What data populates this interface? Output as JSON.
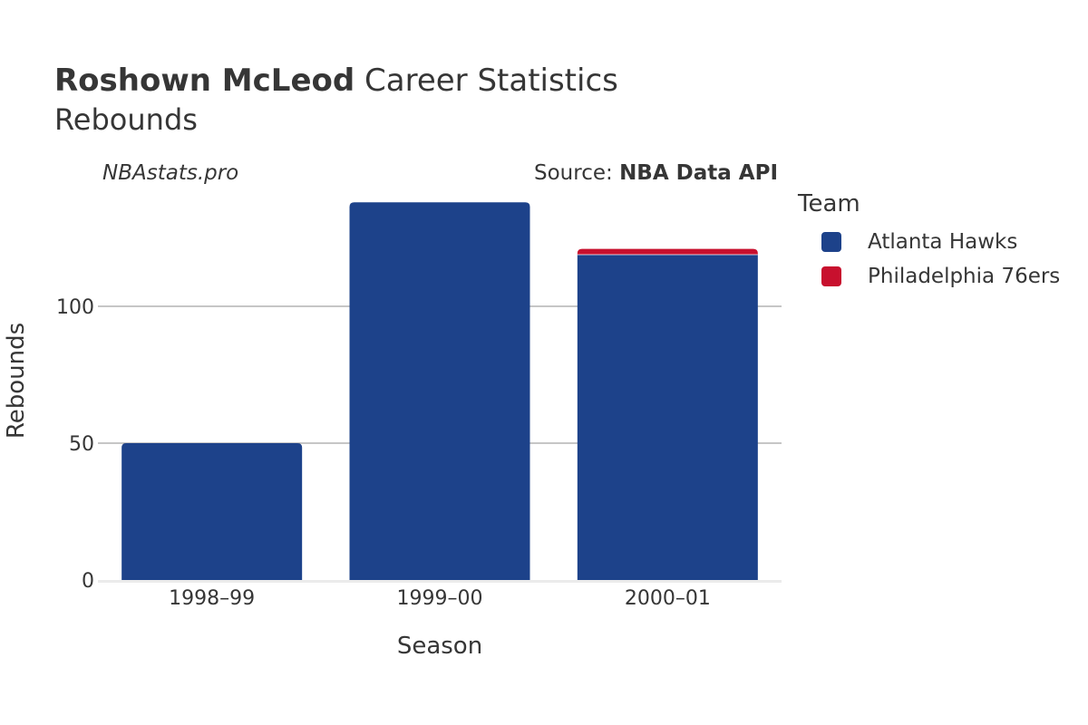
{
  "header": {
    "player_name": "Roshown McLeod",
    "title_rest": " Career Statistics",
    "subtitle": "Rebounds",
    "credit": "NBAstats.pro",
    "source_prefix": "Source: ",
    "source_name": "NBA Data API"
  },
  "legend": {
    "title": "Team",
    "items": [
      {
        "label": "Atlanta Hawks",
        "color": "#1d428a"
      },
      {
        "label": "Philadelphia 76ers",
        "color": "#c8102e"
      }
    ]
  },
  "chart_data": {
    "type": "bar",
    "stacked": true,
    "title": "Roshown McLeod Career Statistics",
    "subtitle": "Rebounds",
    "xlabel": "Season",
    "ylabel": "Rebounds",
    "categories": [
      "1998–99",
      "1999–00",
      "2000–01"
    ],
    "series": [
      {
        "name": "Atlanta Hawks",
        "color": "#1d428a",
        "values": [
          50,
          138,
          119
        ]
      },
      {
        "name": "Philadelphia 76ers",
        "color": "#c8102e",
        "values": [
          0,
          0,
          2
        ]
      }
    ],
    "ylim": [
      0,
      140
    ],
    "yticks": [
      0,
      50,
      100
    ],
    "grid": true,
    "legend_position": "right"
  }
}
